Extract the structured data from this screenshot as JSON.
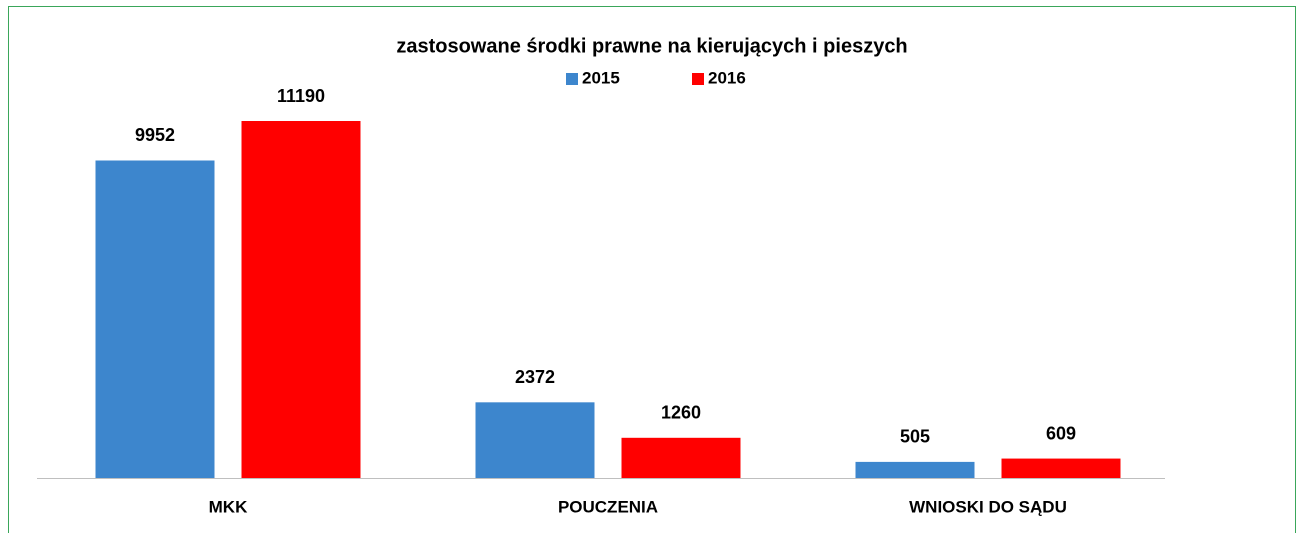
{
  "chart_data": {
    "type": "bar",
    "title": "zastosowane środki prawne na kierujących i pieszych",
    "categories": [
      "MKK",
      "POUCZENIA",
      "WNIOSKI DO SĄDU"
    ],
    "series": [
      {
        "name": "2015",
        "color": "#3d86cd",
        "values": [
          9952,
          2372,
          505
        ]
      },
      {
        "name": "2016",
        "color": "#ff0000",
        "values": [
          11190,
          1260,
          609
        ]
      }
    ]
  }
}
